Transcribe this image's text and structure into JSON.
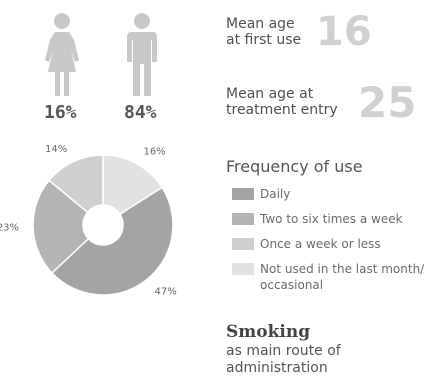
{
  "gender": {
    "female": {
      "icon": "female-figure-icon",
      "percent": "16%"
    },
    "male": {
      "icon": "male-figure-icon",
      "percent": "84%"
    }
  },
  "stats": {
    "first_use": {
      "label_line1": "Mean age",
      "label_line2": "at first use",
      "value": "16"
    },
    "treatment": {
      "label_line1": "Mean age at",
      "label_line2": "treatment entry",
      "value": "25"
    }
  },
  "colors": {
    "daily": "#a4a4a4",
    "two_to_six": "#b4b4b4",
    "once_week": "#cfcfcf",
    "not_used": "#e2e2e2",
    "figure": "#c8c8c8",
    "stat_value": "#d0d0d0"
  },
  "chart_data": {
    "type": "pie",
    "title": "Frequency of use",
    "donut": true,
    "slices": [
      {
        "label": "Not used in the last month/ occasional",
        "value": 16,
        "text": "16%",
        "color": "#e2e2e2"
      },
      {
        "label": "Daily",
        "value": 47,
        "text": "47%",
        "color": "#a4a4a4"
      },
      {
        "label": "Two to six times a week",
        "value": 23,
        "text": "23%",
        "color": "#b4b4b4"
      },
      {
        "label": "Once a week or less",
        "value": 14,
        "text": "14%",
        "color": "#cfcfcf"
      }
    ],
    "legend": [
      {
        "label": "Daily",
        "color": "#a4a4a4"
      },
      {
        "label": "Two to six times a week",
        "color": "#b4b4b4"
      },
      {
        "label": "Once a week or less",
        "color": "#cfcfcf"
      },
      {
        "label_line1": "Not used in the last month/",
        "label_line2": "occasional",
        "color": "#e2e2e2"
      }
    ]
  },
  "smoking": {
    "title": "Smoking",
    "line1": "as main route of",
    "line2": "administration"
  }
}
